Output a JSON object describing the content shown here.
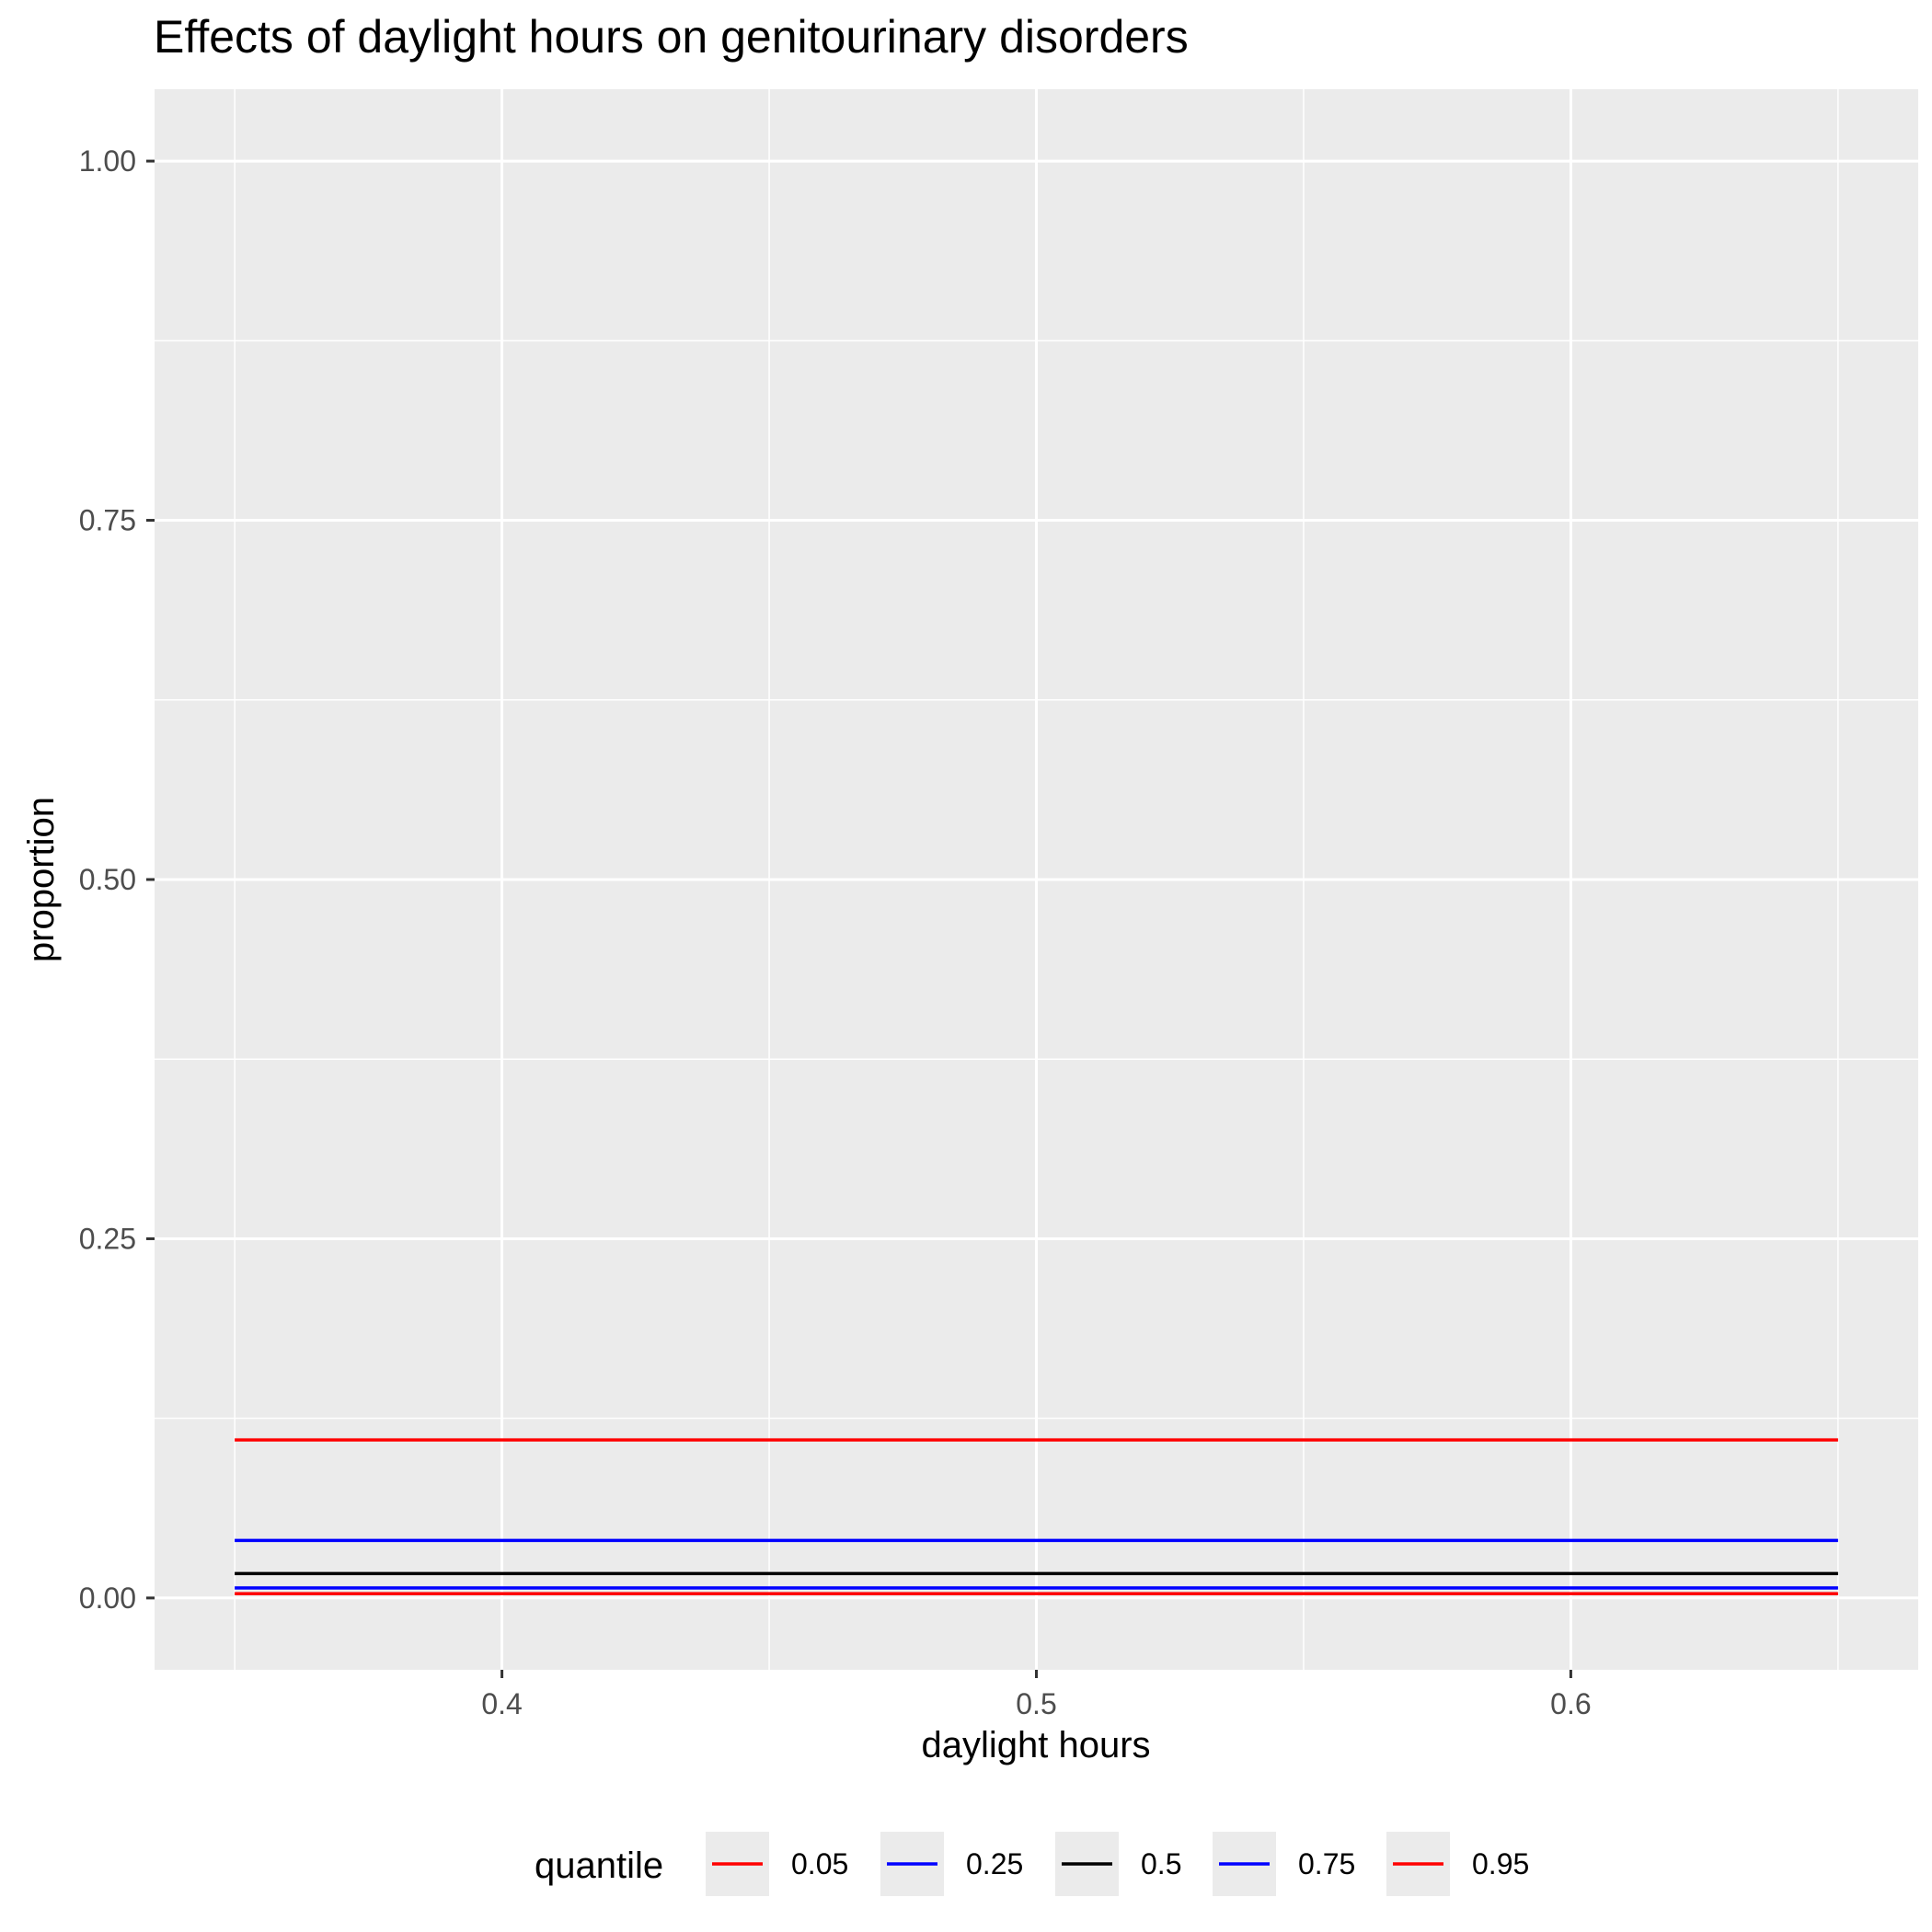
{
  "chart_data": {
    "type": "line",
    "title": "Effects of daylight hours on genitourinary disorders",
    "xlabel": "daylight hours",
    "ylabel": "proportion",
    "xlim": [
      0.335,
      0.665
    ],
    "ylim": [
      -0.05,
      1.05
    ],
    "x_ticks": [
      0.4,
      0.5,
      0.6
    ],
    "x_tick_labels": [
      "0.4",
      "0.5",
      "0.6"
    ],
    "x_minor_ticks": [
      0.35,
      0.45,
      0.55,
      0.65
    ],
    "y_ticks": [
      0.0,
      0.25,
      0.5,
      0.75,
      1.0
    ],
    "y_tick_labels": [
      "0.00",
      "0.25",
      "0.50",
      "0.75",
      "1.00"
    ],
    "y_minor_ticks": [
      0.125,
      0.375,
      0.625,
      0.875
    ],
    "grid": true,
    "legend": {
      "title": "quantile",
      "position": "bottom"
    },
    "series": [
      {
        "name": "0.05",
        "color": "#ff0000",
        "x": [
          0.35,
          0.65
        ],
        "y": [
          0.003,
          0.003
        ]
      },
      {
        "name": "0.25",
        "color": "#0000ff",
        "x": [
          0.35,
          0.65
        ],
        "y": [
          0.007,
          0.007
        ]
      },
      {
        "name": "0.5",
        "color": "#000000",
        "x": [
          0.35,
          0.65
        ],
        "y": [
          0.017,
          0.017
        ]
      },
      {
        "name": "0.75",
        "color": "#0000ff",
        "x": [
          0.35,
          0.65
        ],
        "y": [
          0.04,
          0.04
        ]
      },
      {
        "name": "0.95",
        "color": "#ff0000",
        "x": [
          0.35,
          0.65
        ],
        "y": [
          0.11,
          0.11
        ]
      }
    ]
  },
  "colors": {
    "panel_background": "#ebebeb",
    "grid": "#ffffff",
    "tick_label": "#4d4d4d",
    "axis_tick": "#333333",
    "text": "#000000"
  }
}
